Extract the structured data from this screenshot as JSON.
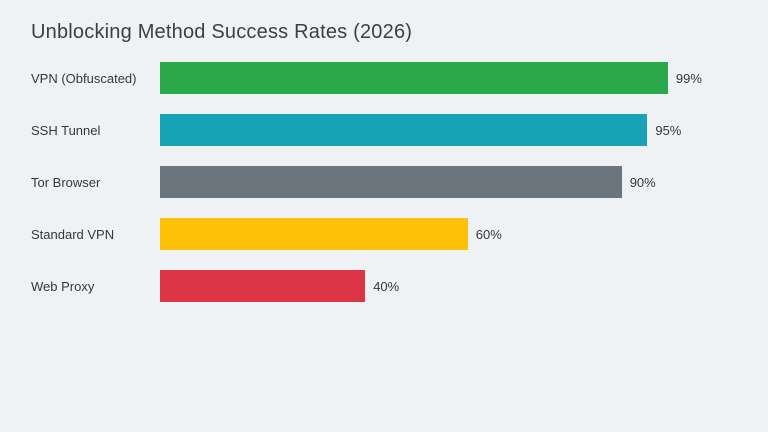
{
  "page": {
    "background_color": "#eef2f5"
  },
  "chart_data": {
    "type": "bar",
    "orientation": "horizontal",
    "title": "Unblocking Method Success Rates (2026)",
    "categories": [
      "VPN (Obfuscated)",
      "SSH Tunnel",
      "Tor Browser",
      "Standard VPN",
      "Web Proxy"
    ],
    "values": [
      99,
      95,
      90,
      60,
      40
    ],
    "value_labels": [
      "99%",
      "95%",
      "90%",
      "60%",
      "40%"
    ],
    "bar_colors": [
      "#2ba84a",
      "#17a2b8",
      "#6c757d",
      "#ffc107",
      "#dc3545"
    ],
    "xlabel": "",
    "ylabel": "",
    "xlim": [
      0,
      100
    ],
    "grid": false,
    "axes_visible": false,
    "legend": "none",
    "text_color": "#33383d",
    "title_color": "#3b4045"
  }
}
